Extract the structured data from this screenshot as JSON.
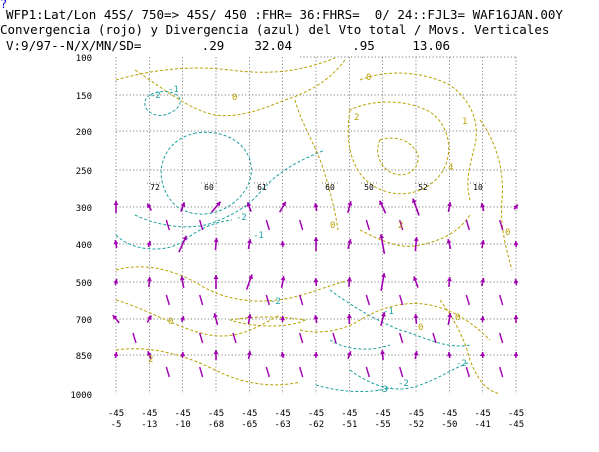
{
  "header": {
    "link_glyph": "?",
    "line1": "WFP1:Lat/Lon 45S/ 750=> 45S/ 450 :FHR= 36:FHRS=  0/ 24::FJL3= WAF16JAN.00Y",
    "line2": "Convergencia (rojo) y Divergencia (azul) del Vto total / Movs. Verticales",
    "line3": "V:9/97--N/X/MN/SD=        .29    32.04        .95     13.06"
  },
  "colors": {
    "background": "#ffffff",
    "axis_text": "#000000",
    "grid": "#555555",
    "convergence": "#b8a000",
    "divergence": "#1fa0a0",
    "vectors": "#a000b0",
    "station_label": "#000000",
    "link": "#0000cc"
  },
  "chart_data": {
    "type": "cross-section",
    "title": "Convergencia (rojo) y Divergencia (azul) del Vto total / Movs. Verticales",
    "y_ticks": [
      "100",
      "150",
      "200",
      "250",
      "300",
      "400",
      "500",
      "700",
      "850",
      "1000"
    ],
    "x_ticks": [
      {
        "lat": "-45",
        "lon": "-5"
      },
      {
        "lat": "-45",
        "lon": "-13"
      },
      {
        "lat": "-45",
        "lon": "-10"
      },
      {
        "lat": "-45",
        "lon": "-68"
      },
      {
        "lat": "-45",
        "lon": "-65"
      },
      {
        "lat": "-45",
        "lon": "-63"
      },
      {
        "lat": "-45",
        "lon": "-62"
      },
      {
        "lat": "-45",
        "lon": "-51"
      },
      {
        "lat": "-45",
        "lon": "-55"
      },
      {
        "lat": "-45",
        "lon": "-52"
      },
      {
        "lat": "-45",
        "lon": "-50"
      },
      {
        "lat": "-45",
        "lon": "-41"
      },
      {
        "lat": "-45",
        "lon": "-45"
      }
    ],
    "station_labels": [
      "72",
      "60",
      "61",
      "60",
      "50",
      "52",
      "10"
    ],
    "contour_labels": [
      {
        "text": "0",
        "series": "convergence"
      },
      {
        "text": "0",
        "series": "convergence"
      },
      {
        "text": "2",
        "series": "convergence"
      },
      {
        "text": "1",
        "series": "convergence"
      },
      {
        "text": "2",
        "series": "convergence"
      },
      {
        "text": "4",
        "series": "convergence"
      },
      {
        "text": "0",
        "series": "convergence"
      },
      {
        "text": "0",
        "series": "convergence"
      },
      {
        "text": "0",
        "series": "convergence"
      },
      {
        "text": "2",
        "series": "convergence"
      },
      {
        "text": "0",
        "series": "convergence"
      },
      {
        "text": "0",
        "series": "convergence"
      },
      {
        "text": "-2",
        "series": "divergence"
      },
      {
        "text": "-1",
        "series": "divergence"
      },
      {
        "text": "-2",
        "series": "divergence"
      },
      {
        "text": "-1",
        "series": "divergence"
      },
      {
        "text": "-2",
        "series": "divergence"
      },
      {
        "text": "-1",
        "series": "divergence"
      },
      {
        "text": "-2",
        "series": "divergence"
      },
      {
        "text": "-2",
        "series": "divergence"
      },
      {
        "text": "-3",
        "series": "divergence"
      }
    ],
    "grid": true
  }
}
